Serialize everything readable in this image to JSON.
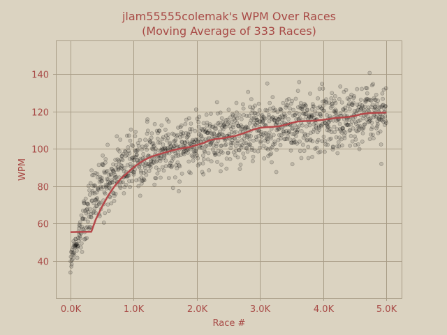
{
  "chart_data": {
    "type": "scatter",
    "title": "jlam55555colemak's WPM Over Races",
    "subtitle": "(Moving Average of 333 Races)",
    "xlabel": "Race #",
    "ylabel": "WPM",
    "xlim": [
      -230,
      5240
    ],
    "ylim": [
      20,
      158
    ],
    "x_ticks": [
      0,
      1000,
      2000,
      3000,
      4000,
      5000
    ],
    "x_tick_labels": [
      "0.0K",
      "1.0K",
      "2.0K",
      "3.0K",
      "4.0K",
      "5.0K"
    ],
    "y_ticks": [
      40,
      60,
      80,
      100,
      120,
      140
    ],
    "y_tick_labels": [
      "40",
      "60",
      "80",
      "100",
      "120",
      "140"
    ],
    "grid": true,
    "legend": "none",
    "series": [
      {
        "kind": "scatter",
        "color": "#000000",
        "count": 5000,
        "trend_anchors_x": [
          0,
          100,
          200,
          350,
          500,
          700,
          1000,
          1300,
          1600,
          2000,
          2400,
          2700,
          3000,
          3500,
          4000,
          4500,
          5000
        ],
        "trend_anchors_y": [
          38,
          50,
          60,
          70,
          80,
          88,
          93,
          97,
          100,
          104,
          106,
          108,
          111,
          113,
          115,
          118,
          119
        ],
        "spread": 8
      },
      {
        "kind": "line",
        "color": "#b5484a",
        "x": [
          0,
          330,
          400,
          500,
          600,
          700,
          800,
          900,
          1000,
          1100,
          1200,
          1300,
          1400,
          1500,
          1600,
          1700,
          1800,
          1900,
          2000,
          2100,
          2200,
          2300,
          2400,
          2500,
          2600,
          2700,
          2800,
          2900,
          3000,
          3100,
          3200,
          3300,
          3400,
          3500,
          3600,
          3700,
          3800,
          3900,
          4000,
          4100,
          4200,
          4300,
          4400,
          4500,
          4600,
          4700,
          4800,
          4900,
          5000
        ],
        "y": [
          55.3,
          55.5,
          62,
          69,
          75,
          80,
          84,
          87,
          90,
          92.5,
          94.5,
          96,
          97,
          98,
          99,
          99.8,
          100.4,
          101,
          102,
          103,
          104.5,
          105.2,
          105.6,
          106.2,
          106.8,
          107.8,
          109,
          110.3,
          111.2,
          111.5,
          111.7,
          112,
          112.8,
          113.8,
          114.6,
          114.8,
          114.9,
          115.1,
          115.5,
          116,
          116.5,
          116.7,
          117,
          117.6,
          118.5,
          119,
          119.2,
          119.3,
          119.4
        ]
      }
    ]
  }
}
